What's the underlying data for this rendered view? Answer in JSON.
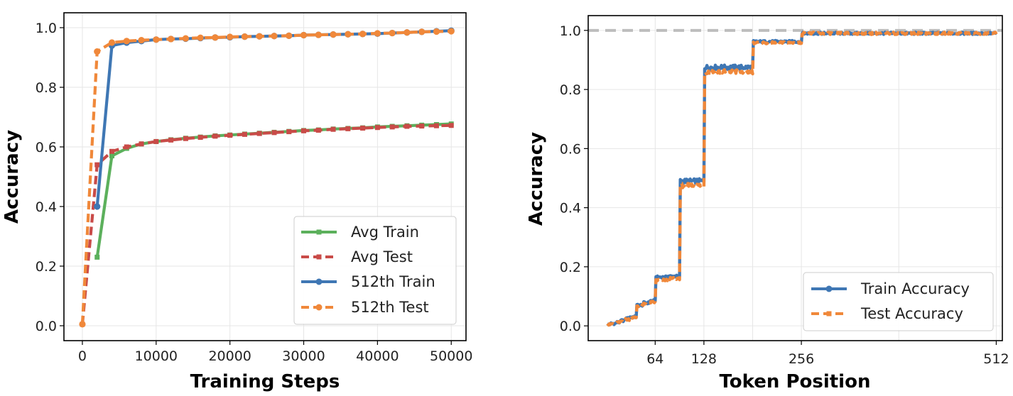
{
  "colors": {
    "avg_train": "#5cb05c",
    "avg_test": "#c94b48",
    "train_512": "#3f77b4",
    "test_512": "#f0883a",
    "grid": "#e6e6e6",
    "reference": "#bdbdbd"
  },
  "chart_data": [
    {
      "type": "line",
      "title": "",
      "xlabel": "Training Steps",
      "ylabel": "Accuracy",
      "xlim": [
        -2500,
        52000
      ],
      "ylim": [
        -0.05,
        1.05
      ],
      "xticks": [
        0,
        10000,
        20000,
        30000,
        40000,
        50000
      ],
      "xtick_labels": [
        "0",
        "10000",
        "20000",
        "30000",
        "40000",
        "50000"
      ],
      "yticks": [
        0.0,
        0.2,
        0.4,
        0.6,
        0.8,
        1.0
      ],
      "ytick_labels": [
        "0.0",
        "0.2",
        "0.4",
        "0.6",
        "0.8",
        "1.0"
      ],
      "grid": true,
      "legend_position": "lower-right",
      "series": [
        {
          "name": "Avg Train",
          "style": "solid",
          "marker": "square",
          "color_key": "avg_train",
          "x": [
            2000,
            4000,
            6000,
            8000,
            10000,
            12000,
            14000,
            16000,
            18000,
            20000,
            22000,
            24000,
            26000,
            28000,
            30000,
            32000,
            34000,
            36000,
            38000,
            40000,
            42000,
            44000,
            46000,
            48000,
            50000
          ],
          "y": [
            0.23,
            0.57,
            0.595,
            0.61,
            0.618,
            0.624,
            0.629,
            0.633,
            0.637,
            0.64,
            0.643,
            0.646,
            0.649,
            0.652,
            0.655,
            0.657,
            0.66,
            0.662,
            0.664,
            0.667,
            0.669,
            0.671,
            0.673,
            0.675,
            0.677
          ]
        },
        {
          "name": "Avg Test",
          "style": "dashed",
          "marker": "square",
          "color_key": "avg_test",
          "x": [
            0,
            2000,
            4000,
            6000,
            8000,
            10000,
            12000,
            14000,
            16000,
            18000,
            20000,
            22000,
            24000,
            26000,
            28000,
            30000,
            32000,
            34000,
            36000,
            38000,
            40000,
            42000,
            44000,
            46000,
            48000,
            50000
          ],
          "y": [
            0.005,
            0.54,
            0.585,
            0.6,
            0.61,
            0.618,
            0.623,
            0.628,
            0.632,
            0.636,
            0.639,
            0.642,
            0.645,
            0.648,
            0.651,
            0.654,
            0.656,
            0.659,
            0.661,
            0.663,
            0.665,
            0.667,
            0.669,
            0.67,
            0.671,
            0.672
          ]
        },
        {
          "name": "512th Train",
          "style": "solid",
          "marker": "circle",
          "color_key": "train_512",
          "x": [
            2000,
            4000,
            6000,
            8000,
            10000,
            12000,
            14000,
            16000,
            18000,
            20000,
            22000,
            24000,
            26000,
            28000,
            30000,
            32000,
            34000,
            36000,
            38000,
            40000,
            42000,
            44000,
            46000,
            48000,
            50000
          ],
          "y": [
            0.4,
            0.94,
            0.95,
            0.955,
            0.96,
            0.962,
            0.963,
            0.965,
            0.967,
            0.968,
            0.97,
            0.971,
            0.972,
            0.973,
            0.975,
            0.976,
            0.977,
            0.978,
            0.979,
            0.98,
            0.982,
            0.984,
            0.986,
            0.988,
            0.99
          ]
        },
        {
          "name": "512th Test",
          "style": "dashed",
          "marker": "circle",
          "color_key": "test_512",
          "x": [
            0,
            2000,
            4000,
            6000,
            8000,
            10000,
            12000,
            14000,
            16000,
            18000,
            20000,
            22000,
            24000,
            26000,
            28000,
            30000,
            32000,
            34000,
            36000,
            38000,
            40000,
            42000,
            44000,
            46000,
            48000,
            50000
          ],
          "y": [
            0.005,
            0.92,
            0.95,
            0.955,
            0.958,
            0.96,
            0.962,
            0.964,
            0.966,
            0.967,
            0.969,
            0.97,
            0.971,
            0.972,
            0.973,
            0.975,
            0.976,
            0.977,
            0.978,
            0.979,
            0.981,
            0.982,
            0.984,
            0.986,
            0.987,
            0.988
          ]
        }
      ]
    },
    {
      "type": "line",
      "title": "",
      "xlabel": "Token Position",
      "ylabel": "Accuracy",
      "xlim": [
        -24,
        520
      ],
      "ylim": [
        -0.05,
        1.05
      ],
      "xticks": [
        64,
        128,
        256,
        512
      ],
      "xtick_labels": [
        "64",
        "128",
        "256",
        "512"
      ],
      "yticks": [
        0.0,
        0.2,
        0.4,
        0.6,
        0.8,
        1.0
      ],
      "ytick_labels": [
        "0.0",
        "0.2",
        "0.4",
        "0.6",
        "0.8",
        "1.0"
      ],
      "grid": true,
      "legend_position": "lower-right",
      "reference_line": {
        "y": 1.0,
        "style": "dashed"
      },
      "segments": [
        {
          "from": 1,
          "to": 5,
          "train": 0.005,
          "test": 0.004
        },
        {
          "from": 6,
          "to": 12,
          "train": 0.008,
          "test": 0.007
        },
        {
          "from": 13,
          "to": 18,
          "train": 0.012,
          "test": 0.011
        },
        {
          "from": 19,
          "to": 24,
          "train": 0.018,
          "test": 0.016
        },
        {
          "from": 25,
          "to": 30,
          "train": 0.025,
          "test": 0.022
        },
        {
          "from": 31,
          "to": 39,
          "train": 0.03,
          "test": 0.028
        },
        {
          "from": 40,
          "to": 48,
          "train": 0.07,
          "test": 0.068
        },
        {
          "from": 49,
          "to": 56,
          "train": 0.078,
          "test": 0.075
        },
        {
          "from": 57,
          "to": 64,
          "train": 0.085,
          "test": 0.08
        },
        {
          "from": 65,
          "to": 80,
          "train": 0.165,
          "test": 0.155
        },
        {
          "from": 81,
          "to": 96,
          "train": 0.168,
          "test": 0.16
        },
        {
          "from": 97,
          "to": 128,
          "train": 0.49,
          "test": 0.475
        },
        {
          "from": 129,
          "to": 192,
          "train": 0.875,
          "test": 0.86
        },
        {
          "from": 193,
          "to": 256,
          "train": 0.962,
          "test": 0.958
        },
        {
          "from": 257,
          "to": 512,
          "train": 0.99,
          "test": 0.99
        }
      ],
      "series": [
        {
          "name": "Train Accuracy",
          "style": "solid",
          "marker": "circle",
          "color_key": "train_512"
        },
        {
          "name": "Test Accuracy",
          "style": "dashed",
          "marker": "square",
          "color_key": "test_512"
        }
      ]
    }
  ]
}
